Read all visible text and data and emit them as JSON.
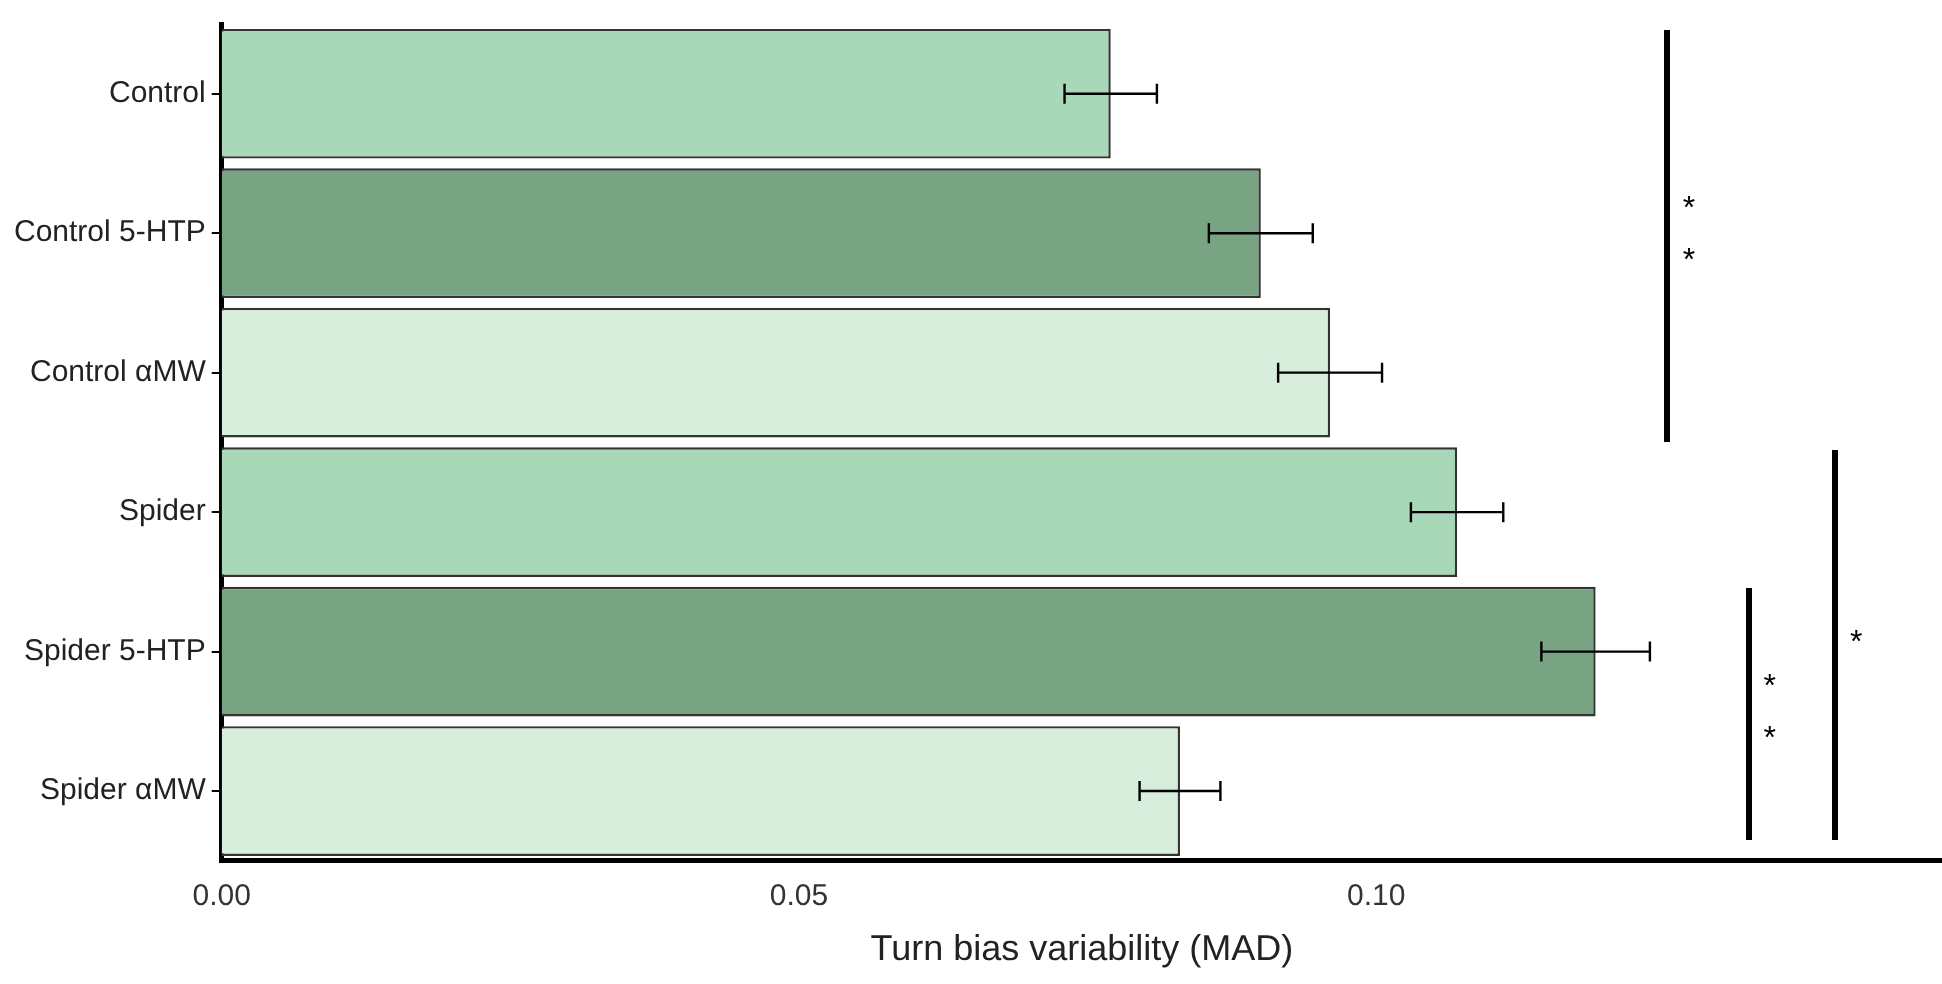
{
  "chart_data": {
    "type": "bar",
    "orientation": "horizontal",
    "xlabel": "Turn bias variability (MAD)",
    "categories": [
      "Control",
      "Control 5-HTP",
      "Control αMW",
      "Spider",
      "Spider 5-HTP",
      "Spider αMW"
    ],
    "values": [
      0.077,
      0.09,
      0.096,
      0.107,
      0.119,
      0.083
    ],
    "colors": [
      "#a8d8b8",
      "#78a484",
      "#d6eedb",
      "#a8d8b8",
      "#78a484",
      "#d6eedb"
    ],
    "errors": [
      0.004,
      0.0045,
      0.0045,
      0.004,
      0.0047,
      0.0035
    ],
    "xlim": [
      0,
      0.149
    ],
    "xticks": [
      {
        "value": 0,
        "label": "0.00"
      },
      {
        "value": 0.05,
        "label": "0.05"
      },
      {
        "value": 0.1,
        "label": "0.10"
      }
    ],
    "grid": false,
    "legend": false,
    "annotations": [
      "**",
      "*",
      "**"
    ]
  }
}
